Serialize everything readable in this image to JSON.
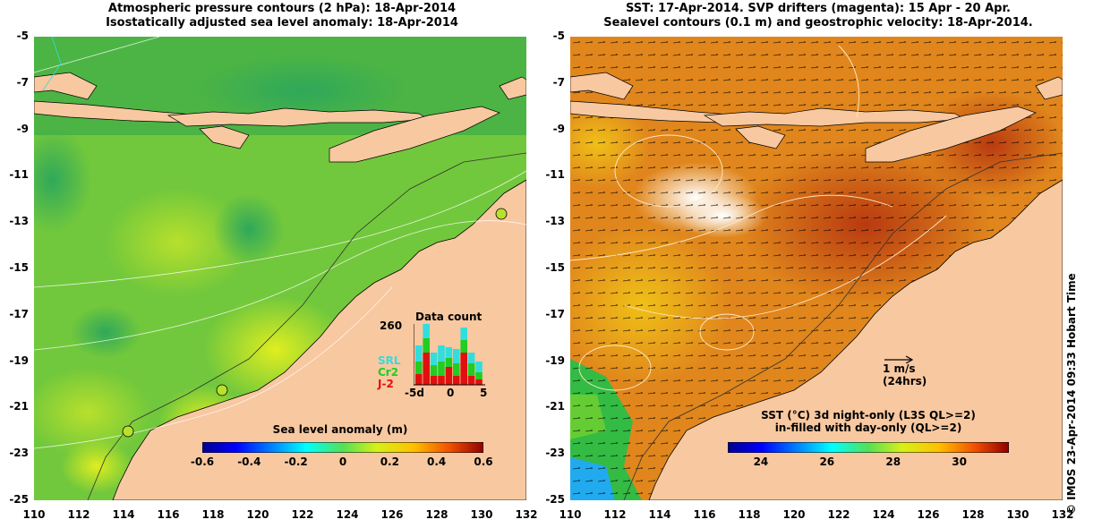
{
  "left_panel": {
    "title_line1": "Atmospheric pressure contours (2 hPa): 18-Apr-2014",
    "title_line2": "Isostatically adjusted sea level anomaly: 18-Apr-2014",
    "colorbar": {
      "title": "Sea level anomaly (m)",
      "ticks": [
        "-0.6",
        "-0.4",
        "-0.2",
        "0",
        "0.2",
        "0.4",
        "0.6"
      ],
      "range": [
        -0.6,
        0.6
      ]
    },
    "data_count": {
      "title": "Data count",
      "max_label": "260",
      "x_ticks": [
        "-5d",
        "0",
        "5"
      ],
      "legend": [
        {
          "label": "SRL",
          "color": "#33dddd"
        },
        {
          "label": "Cr2",
          "color": "#22cc22"
        },
        {
          "label": "J-2",
          "color": "#e01010"
        }
      ]
    }
  },
  "right_panel": {
    "title_line1": "SST: 17-Apr-2014. SVP drifters (magenta): 15 Apr - 20 Apr.",
    "title_line2": "Sealevel contours (0.1 m) and geostrophic velocity: 18-Apr-2014.",
    "velocity_scale": {
      "label": "1 m/s",
      "sublabel": "(24hrs)"
    },
    "colorbar": {
      "title_line1": "SST (°C)  3d night-only (L3S QL>=2)",
      "title_line2": "in-filled with day-only (QL>=2)",
      "ticks": [
        "24",
        "26",
        "28",
        "30"
      ],
      "range": [
        23.0,
        31.5
      ]
    }
  },
  "axes": {
    "y_ticks": [
      "-5",
      "-7",
      "-9",
      "-11",
      "-13",
      "-15",
      "-17",
      "-19",
      "-21",
      "-23",
      "-25"
    ],
    "x_ticks": [
      "110",
      "112",
      "114",
      "116",
      "118",
      "120",
      "122",
      "124",
      "126",
      "128",
      "130",
      "132"
    ]
  },
  "credit": "© IMOS 23-Apr-2014 09:33 Hobart Time",
  "colors": {
    "land": "#f8c8a0",
    "ocean_left": "#6cc43a",
    "ocean_right": "#e08a1c"
  }
}
